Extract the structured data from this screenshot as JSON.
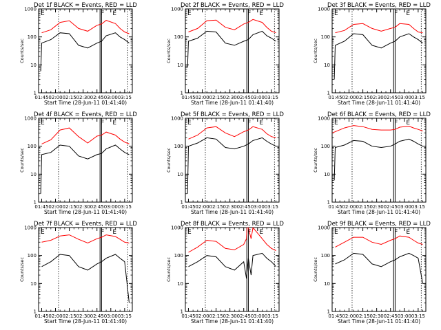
{
  "figure": {
    "x_tick_labels": [
      "01:45",
      "02:00",
      "02:15",
      "02:30",
      "02:45",
      "03:00",
      "03:15"
    ],
    "y_tick_labels": [
      "1",
      "10",
      "100",
      "1000"
    ],
    "ylabel": "Counts/sec",
    "xlabel": "Start Time (28-Jun-11 01:41:40)",
    "marker_labels": [
      "E",
      "F",
      "E"
    ],
    "colors": {
      "events": "#000000",
      "lld": "#ff0000",
      "axes": "#000000",
      "background": "#ffffff"
    }
  },
  "chart_data": [
    {
      "type": "line",
      "title": "Det 1f BLACK = Events, RED = LLD",
      "xlabel": "Start Time (28-Jun-11 01:41:40)",
      "ylabel": "Counts/sec",
      "x_range_min": [
        -3.33,
        98.33
      ],
      "ylim": [
        1,
        1000
      ],
      "y_scale": "log",
      "dashed_v_lines_min": [
        18.33,
        93.33
      ],
      "solid_v_lines_min": [
        63.33,
        65.0
      ],
      "series": [
        {
          "key": "lld",
          "x_min": [
            0,
            10,
            20,
            30,
            40,
            50,
            60,
            65,
            70,
            80,
            85,
            90,
            95
          ],
          "y": [
            140,
            180,
            330,
            380,
            200,
            160,
            260,
            290,
            390,
            300,
            200,
            150,
            130
          ]
        },
        {
          "key": "events",
          "x_min": [
            -1,
            0,
            10,
            20,
            30,
            40,
            50,
            60,
            65,
            70,
            80,
            85,
            90,
            95
          ],
          "y": [
            6,
            60,
            80,
            140,
            130,
            50,
            40,
            60,
            70,
            110,
            140,
            100,
            80,
            60
          ]
        }
      ]
    },
    {
      "type": "line",
      "title": "Det 2f BLACK = Events, RED = LLD",
      "xlabel": "Start Time (28-Jun-11 01:41:40)",
      "ylabel": "Counts/sec",
      "x_range_min": [
        -3.33,
        98.33
      ],
      "ylim": [
        1,
        1000
      ],
      "y_scale": "log",
      "dashed_v_lines_min": [
        18.33,
        93.33
      ],
      "solid_v_lines_min": [
        63.33,
        65.0
      ],
      "series": [
        {
          "key": "lld",
          "x_min": [
            0,
            10,
            20,
            30,
            40,
            50,
            60,
            65,
            70,
            80,
            85,
            90,
            95
          ],
          "y": [
            150,
            200,
            380,
            400,
            220,
            180,
            290,
            330,
            420,
            330,
            220,
            160,
            140
          ]
        },
        {
          "key": "events",
          "x_min": [
            -1,
            0,
            10,
            20,
            30,
            40,
            50,
            60,
            65,
            70,
            80,
            85,
            90,
            95
          ],
          "y": [
            8,
            70,
            90,
            160,
            150,
            60,
            50,
            70,
            80,
            120,
            160,
            110,
            90,
            70
          ]
        }
      ]
    },
    {
      "type": "line",
      "title": "Det 3f BLACK = Events, RED = LLD",
      "xlabel": "Start Time (28-Jun-11 01:41:40)",
      "ylabel": "Counts/sec",
      "x_range_min": [
        -3.33,
        98.33
      ],
      "ylim": [
        1,
        1000
      ],
      "y_scale": "log",
      "dashed_v_lines_min": [
        18.33,
        93.33
      ],
      "solid_v_lines_min": [
        63.33,
        65.0
      ],
      "series": [
        {
          "key": "lld",
          "x_min": [
            0,
            10,
            20,
            30,
            40,
            50,
            60,
            65,
            70,
            80,
            85,
            90,
            95
          ],
          "y": [
            140,
            170,
            280,
            300,
            200,
            160,
            200,
            220,
            300,
            280,
            200,
            150,
            140
          ]
        },
        {
          "key": "events",
          "x_min": [
            -1,
            0,
            10,
            20,
            30,
            40,
            50,
            60,
            65,
            70,
            80,
            85,
            90,
            95
          ],
          "y": [
            3,
            50,
            70,
            130,
            120,
            50,
            40,
            60,
            70,
            100,
            130,
            100,
            80,
            60
          ]
        }
      ]
    },
    {
      "type": "line",
      "title": "Det 4f BLACK = Events, RED = LLD",
      "xlabel": "Start Time (28-Jun-11 01:41:40)",
      "ylabel": "Counts/sec",
      "x_range_min": [
        -3.33,
        98.33
      ],
      "ylim": [
        1,
        1000
      ],
      "y_scale": "log",
      "dashed_v_lines_min": [
        18.33,
        93.33
      ],
      "solid_v_lines_min": [
        63.33,
        65.0
      ],
      "series": [
        {
          "key": "lld",
          "x_min": [
            0,
            10,
            20,
            30,
            40,
            50,
            60,
            65,
            70,
            80,
            85,
            90,
            95
          ],
          "y": [
            120,
            170,
            380,
            450,
            220,
            130,
            230,
            250,
            320,
            250,
            180,
            140,
            120
          ]
        },
        {
          "key": "events",
          "x_min": [
            -1,
            0,
            10,
            20,
            30,
            40,
            50,
            60,
            65,
            70,
            80,
            85,
            90,
            95
          ],
          "y": [
            2,
            50,
            60,
            110,
            100,
            45,
            35,
            50,
            55,
            80,
            110,
            80,
            60,
            50
          ]
        }
      ]
    },
    {
      "type": "line",
      "title": "Det 5f BLACK = Events, RED = LLD",
      "xlabel": "Start Time (28-Jun-11 01:41:40)",
      "ylabel": "Counts/sec",
      "x_range_min": [
        -3.33,
        98.33
      ],
      "ylim": [
        1,
        1000
      ],
      "y_scale": "log",
      "dashed_v_lines_min": [
        18.33,
        93.33
      ],
      "solid_v_lines_min": [
        63.33,
        65.0
      ],
      "series": [
        {
          "key": "lld",
          "x_min": [
            0,
            10,
            20,
            30,
            40,
            50,
            60,
            65,
            70,
            80,
            85,
            90,
            95
          ],
          "y": [
            180,
            250,
            450,
            500,
            300,
            220,
            330,
            380,
            500,
            400,
            280,
            220,
            200
          ]
        },
        {
          "key": "events",
          "x_min": [
            -1,
            0,
            10,
            20,
            30,
            40,
            50,
            60,
            65,
            70,
            80,
            85,
            90,
            95
          ],
          "y": [
            2,
            100,
            130,
            200,
            180,
            90,
            80,
            100,
            120,
            160,
            200,
            150,
            120,
            100
          ]
        }
      ]
    },
    {
      "type": "line",
      "title": "Det 6f BLACK = Events, RED = LLD",
      "xlabel": "Start Time (28-Jun-11 01:41:40)",
      "ylabel": "Counts/sec",
      "x_range_min": [
        -3.33,
        98.33
      ],
      "ylim": [
        1,
        1000
      ],
      "y_scale": "log",
      "dashed_v_lines_min": [
        18.33,
        93.33
      ],
      "solid_v_lines_min": [
        63.33,
        65.0
      ],
      "series": [
        {
          "key": "lld",
          "x_min": [
            -3,
            0,
            10,
            20,
            30,
            40,
            50,
            60,
            65,
            70,
            80,
            85,
            90,
            95
          ],
          "y": [
            300,
            330,
            450,
            550,
            500,
            400,
            380,
            380,
            400,
            480,
            520,
            450,
            400,
            350
          ]
        },
        {
          "key": "events",
          "x_min": [
            -1,
            0,
            10,
            20,
            30,
            40,
            50,
            60,
            65,
            70,
            80,
            85,
            90,
            95
          ],
          "y": [
            6,
            90,
            110,
            160,
            150,
            100,
            90,
            100,
            120,
            150,
            180,
            150,
            120,
            100
          ]
        }
      ]
    },
    {
      "type": "line",
      "title": "Det 7f BLACK = Events, RED = LLD",
      "xlabel": "Start Time (28-Jun-11 01:41:40)",
      "ylabel": "Counts/sec",
      "x_range_min": [
        -3.33,
        98.33
      ],
      "ylim": [
        1,
        1000
      ],
      "y_scale": "log",
      "dashed_v_lines_min": [
        18.33,
        93.33
      ],
      "solid_v_lines_min": [
        63.33,
        65.0
      ],
      "series": [
        {
          "key": "lld",
          "x_min": [
            0,
            10,
            20,
            30,
            40,
            50,
            60,
            65,
            70,
            80,
            85,
            90,
            95
          ],
          "y": [
            300,
            350,
            500,
            550,
            380,
            280,
            400,
            450,
            550,
            480,
            380,
            300,
            280
          ]
        },
        {
          "key": "events",
          "x_min": [
            0,
            10,
            20,
            30,
            40,
            50,
            60,
            65,
            70,
            80,
            85,
            90,
            95
          ],
          "y": [
            40,
            60,
            110,
            100,
            40,
            30,
            50,
            60,
            80,
            110,
            80,
            60,
            2
          ]
        }
      ]
    },
    {
      "type": "line",
      "title": "Det 8f BLACK = Events, RED = LLD",
      "xlabel": "Start Time (28-Jun-11 01:41:40)",
      "ylabel": "Counts/sec",
      "x_range_min": [
        -3.33,
        98.33
      ],
      "ylim": [
        1,
        1000
      ],
      "y_scale": "log",
      "dashed_v_lines_min": [
        18.33,
        93.33
      ],
      "solid_v_lines_min": [
        63.33,
        65.0
      ],
      "series": [
        {
          "key": "lld",
          "x_min": [
            0,
            10,
            20,
            30,
            40,
            50,
            60,
            63,
            63.5,
            65,
            68,
            70,
            80,
            85,
            90,
            95
          ],
          "y": [
            130,
            200,
            350,
            320,
            180,
            160,
            250,
            400,
            1000,
            1000,
            400,
            1000,
            400,
            250,
            180,
            150
          ]
        },
        {
          "key": "events",
          "x_min": [
            0,
            10,
            20,
            30,
            40,
            50,
            60,
            63,
            65,
            68,
            70,
            80,
            85,
            90,
            95
          ],
          "y": [
            40,
            60,
            100,
            90,
            40,
            30,
            60,
            15,
            80,
            20,
            100,
            120,
            80,
            60,
            40
          ]
        }
      ]
    },
    {
      "type": "line",
      "title": "Det 9f BLACK = Events, RED = LLD",
      "xlabel": "Start Time (28-Jun-11 01:41:40)",
      "ylabel": "Counts/sec",
      "x_range_min": [
        -3.33,
        98.33
      ],
      "ylim": [
        1,
        1000
      ],
      "y_scale": "log",
      "dashed_v_lines_min": [
        18.33,
        93.33
      ],
      "solid_v_lines_min": [
        63.33,
        65.0
      ],
      "series": [
        {
          "key": "lld",
          "x_min": [
            0,
            10,
            20,
            30,
            40,
            50,
            60,
            65,
            70,
            80,
            85,
            90,
            95
          ],
          "y": [
            200,
            300,
            450,
            450,
            300,
            250,
            350,
            400,
            500,
            450,
            350,
            280,
            250
          ]
        },
        {
          "key": "events",
          "x_min": [
            0,
            10,
            20,
            30,
            40,
            50,
            60,
            65,
            70,
            80,
            85,
            90,
            95
          ],
          "y": [
            50,
            70,
            120,
            110,
            50,
            40,
            60,
            70,
            90,
            120,
            100,
            80,
            10
          ]
        }
      ]
    }
  ]
}
